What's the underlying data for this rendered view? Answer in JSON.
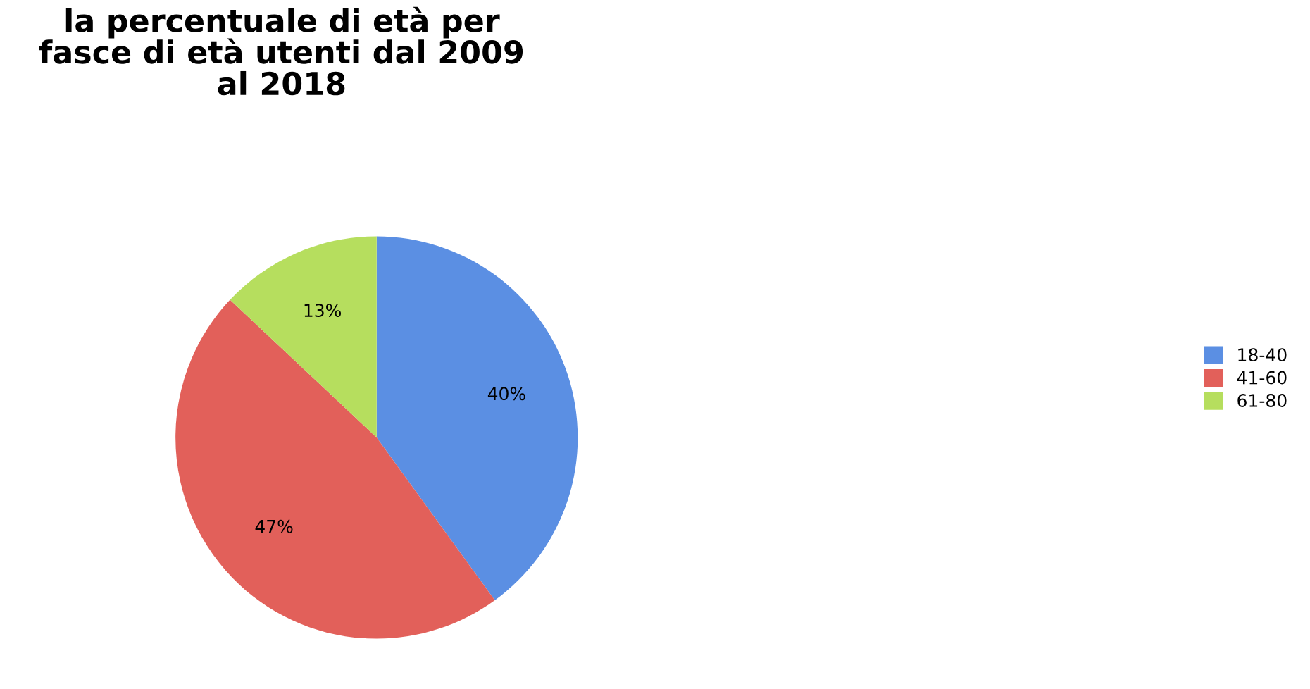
{
  "chart_data": {
    "type": "pie",
    "title": "la percentuale di età per\nfasce di età utenti dal 2009\nal 2018",
    "categories": [
      "18-40",
      "41-60",
      "61-80"
    ],
    "values": [
      40,
      47,
      13
    ],
    "colors": [
      "#5b8fe3",
      "#e2605a",
      "#b6de5e"
    ],
    "value_labels": [
      "40%",
      "47%",
      "13%"
    ],
    "legend": "right"
  }
}
